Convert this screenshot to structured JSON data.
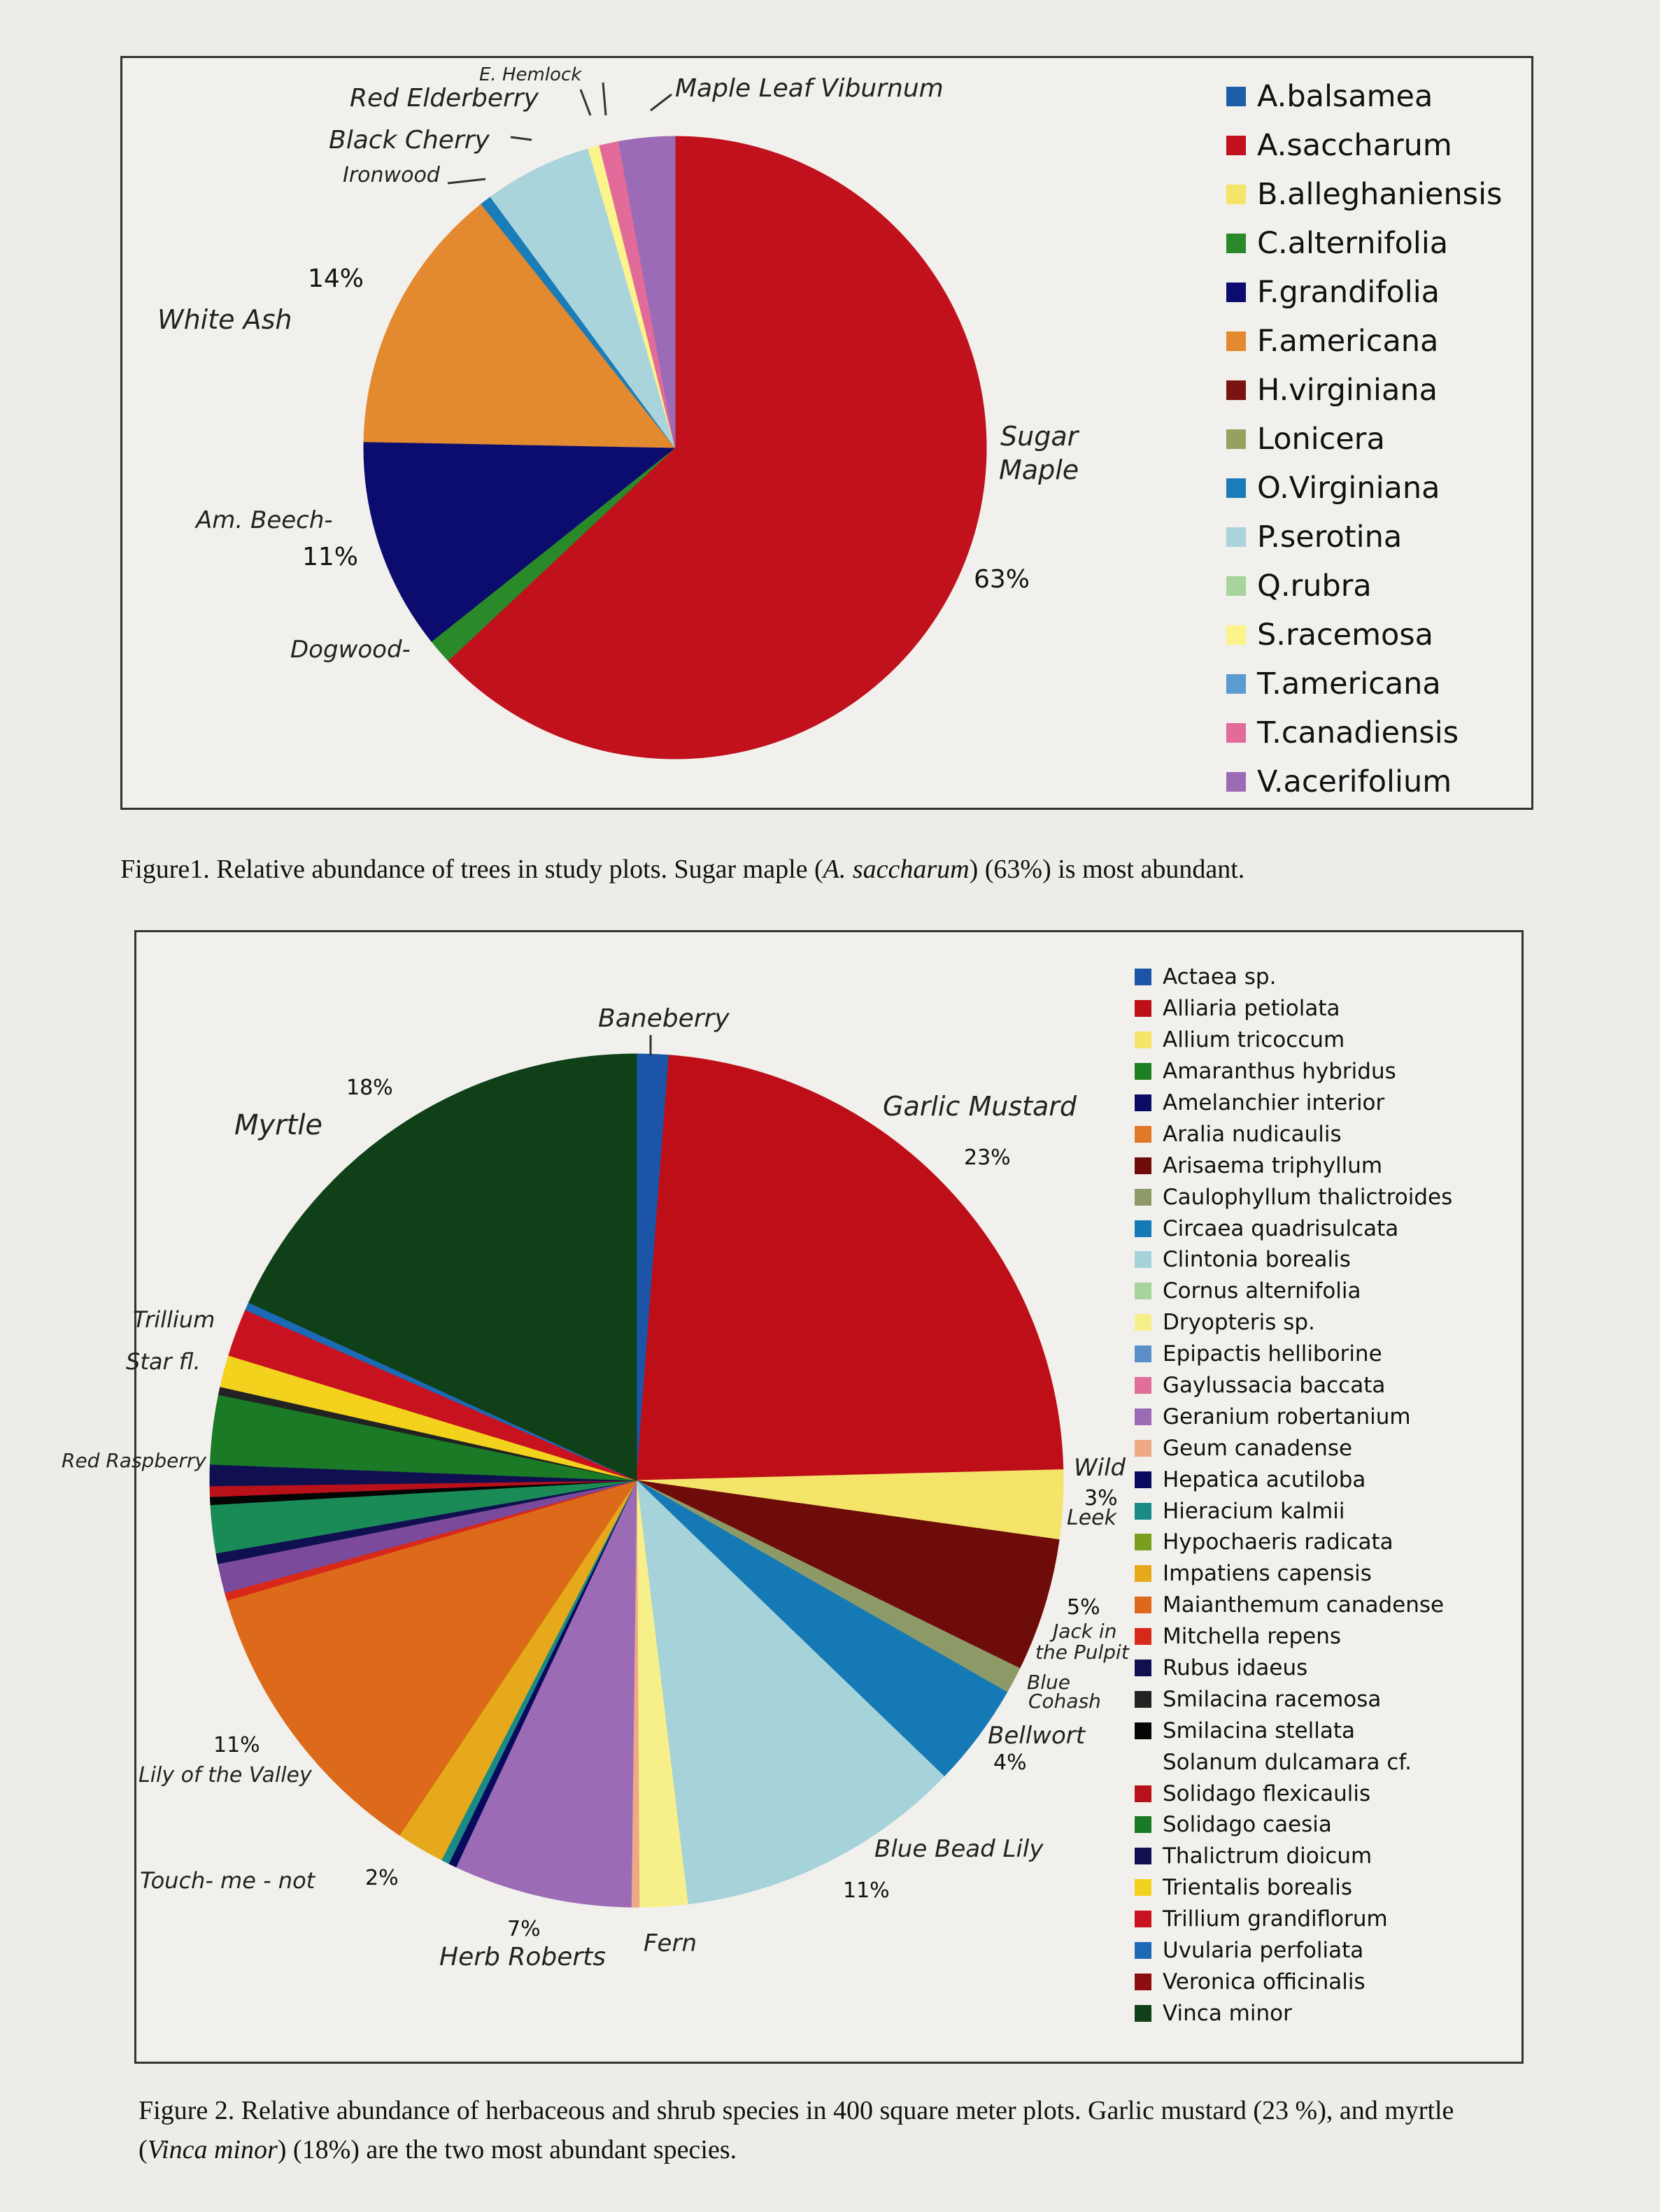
{
  "chart_data": [
    {
      "type": "pie",
      "legend_position": "right",
      "legend": [
        {
          "label": "A.balsamea",
          "color": "#1a5fa8"
        },
        {
          "label": "A.saccharum",
          "color": "#c0111d"
        },
        {
          "label": "B.alleghaniensis",
          "color": "#f5e46a"
        },
        {
          "label": "C.alternifolia",
          "color": "#2a8a2a"
        },
        {
          "label": "F.grandifolia",
          "color": "#0c0c6e"
        },
        {
          "label": "F.americana",
          "color": "#e3892f"
        },
        {
          "label": "H.virginiana",
          "color": "#7a1410"
        },
        {
          "label": "Lonicera",
          "color": "#97a060"
        },
        {
          "label": "O.Virginiana",
          "color": "#1b7db8"
        },
        {
          "label": "P.serotina",
          "color": "#a9d4dc"
        },
        {
          "label": "Q.rubra",
          "color": "#a7d49a"
        },
        {
          "label": "S.racemosa",
          "color": "#fbf38c"
        },
        {
          "label": "T.americana",
          "color": "#5b9bd0"
        },
        {
          "label": "T.canadiensis",
          "color": "#e26b9a"
        },
        {
          "label": "V.acerifolium",
          "color": "#9b6bb5"
        }
      ],
      "slices": [
        {
          "label": "A.saccharum",
          "value": 63,
          "color": "#c0111d"
        },
        {
          "label": "C.alternifolia",
          "value": 1.3,
          "color": "#2a8a2a"
        },
        {
          "label": "F.grandifolia",
          "value": 11,
          "color": "#0c0c6e"
        },
        {
          "label": "F.americana",
          "value": 14,
          "color": "#e3892f"
        },
        {
          "label": "O.Virginiana",
          "value": 0.6,
          "color": "#1b7db8"
        },
        {
          "label": "P.serotina",
          "value": 5.6,
          "color": "#a9d4dc"
        },
        {
          "label": "S.racemosa",
          "value": 0.6,
          "color": "#fbf38c"
        },
        {
          "label": "T.canadiensis",
          "value": 1.0,
          "color": "#e26b9a"
        },
        {
          "label": "V.acerifolium",
          "value": 2.9,
          "color": "#9b6bb5"
        }
      ],
      "annotations": {
        "sugar_maple_line1": "Sugar",
        "sugar_maple_line2": "Maple",
        "sugar_maple_pct": "63%",
        "white_ash": "White  Ash",
        "white_ash_pct": "14%",
        "am_beech": "Am. Beech-",
        "am_beech_pct": "11%",
        "dogwood": "Dogwood-",
        "ironwood": "Ironwood",
        "black_cherry": "Black Cherry",
        "red_elderberry": "Red Elderberry",
        "e_hemlock": "E. Hemlock",
        "maple_leaf_viburnum": "Maple Leaf Viburnum"
      },
      "caption_prefix": "Figure1. Relative abundance of trees in study plots. Sugar maple (",
      "caption_italic": "A. saccharum",
      "caption_suffix": ") (63%) is most abundant."
    },
    {
      "type": "pie",
      "legend_position": "right",
      "legend": [
        {
          "label": "Actaea sp.",
          "color": "#1c55a8"
        },
        {
          "label": "Alliaria petiolata",
          "color": "#be0f18"
        },
        {
          "label": "Allium tricoccum",
          "color": "#f4e46a"
        },
        {
          "label": "Amaranthus hybridus",
          "color": "#1e7e22"
        },
        {
          "label": "Amelanchier interior",
          "color": "#0b0b66"
        },
        {
          "label": "Aralia nudicaulis",
          "color": "#e0782a"
        },
        {
          "label": "Arisaema triphyllum",
          "color": "#6e0c0a"
        },
        {
          "label": "Caulophyllum thalictroides",
          "color": "#8d9a68"
        },
        {
          "label": "Circaea quadrisulcata",
          "color": "#1479b5"
        },
        {
          "label": "Clintonia borealis",
          "color": "#a6d2da"
        },
        {
          "label": "Cornus alternifolia",
          "color": "#a7d49a"
        },
        {
          "label": "Dryopteris sp.",
          "color": "#f7ef8a"
        },
        {
          "label": "Epipactis helliborine",
          "color": "#5b8fc8"
        },
        {
          "label": "Gaylussacia baccata",
          "color": "#e0709a"
        },
        {
          "label": "Geranium robertanium",
          "color": "#9b6bb5"
        },
        {
          "label": "Geum canadense",
          "color": "#eeaa84"
        },
        {
          "label": "Hepatica acutiloba",
          "color": "#0a0a5c"
        },
        {
          "label": "Hieracium kalmii",
          "color": "#1a8a86"
        },
        {
          "label": "Hypochaeris radicata",
          "color": "#7a9e1e"
        },
        {
          "label": "Impatiens capensis",
          "color": "#e6a91c"
        },
        {
          "label": "Maianthemum canadense",
          "color": "#dc6a1a"
        },
        {
          "label": "Mitchella repens",
          "color": "#d8281a"
        },
        {
          "label": "Rubus idaeus",
          "color": "#101050"
        },
        {
          "label": "Smilacina racemosa",
          "color": "#222222"
        },
        {
          "label": "Smilacina stellata",
          "color": "#050505"
        },
        {
          "label": "Solanum dulcamara cf.",
          "color": ""
        },
        {
          "label": "Solidago flexicaulis",
          "color": "#b8111a"
        },
        {
          "label": "Solidago caesia",
          "color": "#1b7a25"
        },
        {
          "label": "Thalictrum dioicum",
          "color": "#101050"
        },
        {
          "label": "Trientalis borealis",
          "color": "#f2d21c"
        },
        {
          "label": "Trillium grandiflorum",
          "color": "#c81220"
        },
        {
          "label": "Uvularia perfoliata",
          "color": "#1c6ab5"
        },
        {
          "label": "Veronica officinalis",
          "color": "#8c0e10"
        },
        {
          "label": "Vinca minor",
          "color": "#0f4018"
        }
      ],
      "slices": [
        {
          "label": "Actaea sp.",
          "value": 1.2,
          "color": "#1c55a8"
        },
        {
          "label": "Alliaria petiolata",
          "value": 23.2,
          "color": "#be0f18"
        },
        {
          "label": "Allium tricoccum",
          "value": 2.6,
          "color": "#f4e46a"
        },
        {
          "label": "Arisaema triphyllum",
          "value": 5.0,
          "color": "#6e0c0a"
        },
        {
          "label": "Caulophyllum thalictroides",
          "value": 1.0,
          "color": "#8d9a68"
        },
        {
          "label": "Circaea quadrisulcata",
          "value": 3.9,
          "color": "#1479b5"
        },
        {
          "label": "Clintonia borealis",
          "value": 10.8,
          "color": "#a6d2da"
        },
        {
          "label": "Dryopteris sp.",
          "value": 1.8,
          "color": "#f7ef8a"
        },
        {
          "label": "Geum canadense",
          "value": 0.3,
          "color": "#eeaa84"
        },
        {
          "label": "Geranium robertanium",
          "value": 6.7,
          "color": "#9b6bb5"
        },
        {
          "label": "Hepatica acutiloba",
          "value": 0.3,
          "color": "#0a0a5c"
        },
        {
          "label": "Hieracium kalmii",
          "value": 0.3,
          "color": "#1a8a86"
        },
        {
          "label": "Impatiens capensis",
          "value": 1.8,
          "color": "#e6a91c"
        },
        {
          "label": "Maianthemum canadense",
          "value": 11.0,
          "color": "#dc6a1a"
        },
        {
          "label": "Mitchella repens",
          "value": 0.3,
          "color": "#d8281a"
        },
        {
          "label": "Geranium robertanium",
          "value": 1.1,
          "color": "#7b4a9a"
        },
        {
          "label": "Rubus idaeus",
          "value": 0.4,
          "color": "#101050"
        },
        {
          "label": "Hieracium kalmii",
          "value": 1.8,
          "color": "#1a8a56"
        },
        {
          "label": "Smilacina stellata",
          "value": 0.3,
          "color": "#050505"
        },
        {
          "label": "Solidago flexicaulis",
          "value": 0.4,
          "color": "#b8111a"
        },
        {
          "label": "Thalictrum dioicum",
          "value": 0.8,
          "color": "#101050"
        },
        {
          "label": "Solidago caesia",
          "value": 2.6,
          "color": "#1b7a25"
        },
        {
          "label": "Smilacina racemosa",
          "value": 0.3,
          "color": "#222222"
        },
        {
          "label": "Trientalis borealis",
          "value": 1.2,
          "color": "#f2d21c"
        },
        {
          "label": "Trillium grandiflorum",
          "value": 1.8,
          "color": "#c81220"
        },
        {
          "label": "Uvularia perfoliata",
          "value": 0.3,
          "color": "#1c6ab5"
        },
        {
          "label": "Vinca minor",
          "value": 18.0,
          "color": "#0f4018"
        }
      ],
      "annotations": {
        "baneberry": "Baneberry",
        "garlic_mustard": "Garlic Mustard",
        "garlic_mustard_pct": "23%",
        "wild": "Wild",
        "wild_pct": "3%",
        "leek": "Leek",
        "jack_pct": "5%",
        "jack_line1": "Jack in",
        "jack_line2": "the Pulpit",
        "blue_cohosh_line1": "Blue",
        "blue_cohosh_line2": "Cohash",
        "bellwort": "Bellwort",
        "bellwort_pct": "4%",
        "blue_bead_lily": "Blue Bead Lily",
        "blue_bead_lily_pct": "11%",
        "fern": "Fern",
        "herb_roberts_pct": "7%",
        "herb_roberts": "Herb Roberts",
        "touch_me_not": "Touch- me - not",
        "touch_me_not_pct": "2%",
        "lily_pct": "11%",
        "lily_of_the_valley": "Lily of the Valley",
        "red_raspberry": "Red Raspberry",
        "star_fl": "Star fl.",
        "trillium": "Trillium",
        "myrtle": "Myrtle",
        "myrtle_pct": "18%"
      },
      "caption_prefix": "Figure 2. Relative abundance of herbaceous and shrub species in 400 square meter plots.  Garlic mustard (23 %), and myrtle (",
      "caption_italic": "Vinca minor",
      "caption_suffix": ") (18%) are the two most abundant species."
    }
  ]
}
